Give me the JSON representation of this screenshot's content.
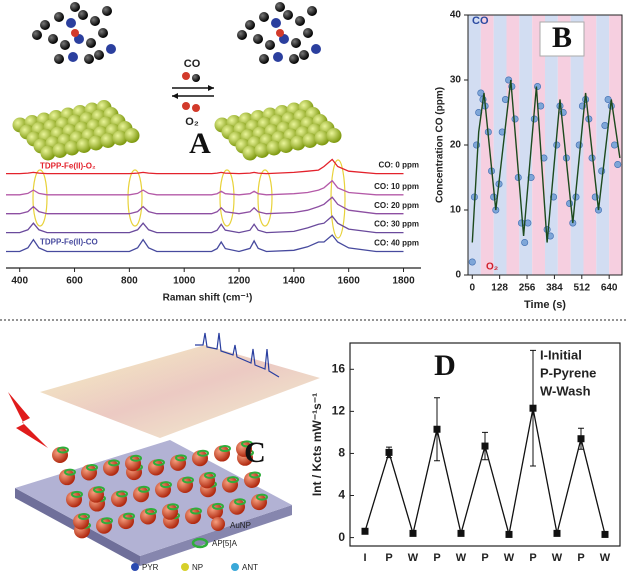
{
  "chart_data": [
    {
      "type": "line",
      "panel": "A",
      "xlabel": "Raman shift (cm⁻¹)",
      "annotations": [
        "TDPP-Fe(II)-O₂",
        "TDPP-Fe(II)-CO"
      ],
      "scheme_labels": [
        "CO",
        "O₂"
      ],
      "xlim": [
        350,
        1820
      ],
      "xticks": [
        400,
        600,
        800,
        1000,
        1200,
        1400,
        1600,
        1800
      ],
      "ylim": [
        0,
        5
      ],
      "x": [
        350,
        400,
        430,
        450,
        470,
        500,
        600,
        700,
        800,
        830,
        850,
        870,
        900,
        1000,
        1100,
        1120,
        1135,
        1150,
        1200,
        1240,
        1255,
        1270,
        1300,
        1400,
        1450,
        1490,
        1510,
        1540,
        1560,
        1600,
        1700,
        1800
      ],
      "series": [
        {
          "name": "CO: 0 ppm",
          "color": "#e3222c",
          "values": [
            4.0,
            4.0,
            4.02,
            4.05,
            4.02,
            4.0,
            4.0,
            4.0,
            4.0,
            4.02,
            4.05,
            4.02,
            4.0,
            4.0,
            4.0,
            4.02,
            4.05,
            4.02,
            4.0,
            4.02,
            4.05,
            4.02,
            4.0,
            4.05,
            4.1,
            4.15,
            4.3,
            4.6,
            4.3,
            4.1,
            4.0,
            4.0
          ]
        },
        {
          "name": "CO: 10 ppm",
          "color": "#b45aa8",
          "values": [
            3.1,
            3.1,
            3.16,
            3.3,
            3.16,
            3.1,
            3.1,
            3.1,
            3.1,
            3.16,
            3.3,
            3.16,
            3.1,
            3.1,
            3.1,
            3.15,
            3.25,
            3.15,
            3.1,
            3.15,
            3.25,
            3.15,
            3.1,
            3.15,
            3.2,
            3.3,
            3.4,
            3.7,
            3.4,
            3.2,
            3.1,
            3.1
          ]
        },
        {
          "name": "CO: 20 ppm",
          "color": "#8d4fa2",
          "values": [
            2.3,
            2.3,
            2.39,
            2.6,
            2.39,
            2.3,
            2.3,
            2.3,
            2.3,
            2.39,
            2.6,
            2.39,
            2.3,
            2.3,
            2.3,
            2.38,
            2.55,
            2.38,
            2.3,
            2.38,
            2.55,
            2.38,
            2.3,
            2.35,
            2.45,
            2.6,
            2.7,
            3.0,
            2.7,
            2.45,
            2.3,
            2.3
          ]
        },
        {
          "name": "CO: 30 ppm",
          "color": "#6a4a9c",
          "values": [
            1.5,
            1.5,
            1.62,
            1.9,
            1.62,
            1.5,
            1.5,
            1.5,
            1.5,
            1.62,
            1.9,
            1.62,
            1.5,
            1.5,
            1.5,
            1.6,
            1.85,
            1.6,
            1.5,
            1.6,
            1.85,
            1.6,
            1.5,
            1.55,
            1.7,
            1.85,
            1.9,
            2.2,
            1.9,
            1.65,
            1.5,
            1.5
          ]
        },
        {
          "name": "CO: 40 ppm",
          "color": "#474a9e",
          "values": [
            0.7,
            0.7,
            0.85,
            1.2,
            0.85,
            0.7,
            0.7,
            0.7,
            0.7,
            0.85,
            1.2,
            0.85,
            0.7,
            0.7,
            0.7,
            0.82,
            1.1,
            0.82,
            0.7,
            0.83,
            1.15,
            0.83,
            0.7,
            0.75,
            0.9,
            1.1,
            1.1,
            1.4,
            1.1,
            0.85,
            0.7,
            0.7
          ]
        }
      ]
    },
    {
      "type": "scatter",
      "panel": "B",
      "xlabel": "Time (s)",
      "ylabel": "Concentration CO (ppm)",
      "annotations": [
        "CO",
        "O₂"
      ],
      "color": "#7ea6d8",
      "xlim": [
        -20,
        700
      ],
      "xticks": [
        0,
        128,
        256,
        384,
        512,
        640
      ],
      "ylim": [
        0,
        40
      ],
      "yticks": [
        0,
        10,
        20,
        30,
        40
      ],
      "x": [
        0,
        10,
        20,
        30,
        40,
        50,
        60,
        75,
        90,
        100,
        110,
        125,
        140,
        155,
        170,
        185,
        200,
        215,
        230,
        245,
        260,
        275,
        290,
        305,
        320,
        335,
        350,
        365,
        380,
        395,
        410,
        425,
        440,
        455,
        470,
        485,
        500,
        515,
        530,
        545,
        560,
        575,
        590,
        605,
        620,
        635,
        650,
        665,
        680
      ],
      "values": [
        2,
        12,
        20,
        25,
        28,
        27,
        26,
        22,
        16,
        12,
        10,
        14,
        22,
        27,
        30,
        29,
        24,
        15,
        8,
        5,
        8,
        15,
        24,
        29,
        26,
        18,
        7,
        6,
        12,
        20,
        26,
        25,
        18,
        11,
        8,
        12,
        20,
        26,
        27,
        24,
        18,
        12,
        10,
        16,
        23,
        27,
        26,
        20,
        17
      ],
      "fit": {
        "color": "#1d4a1d",
        "x": [
          0,
          30,
          55,
          110,
          180,
          240,
          300,
          350,
          410,
          470,
          530,
          590,
          650,
          690
        ],
        "values": [
          5,
          22,
          28,
          10,
          30,
          6,
          29,
          5,
          27,
          8,
          28,
          10,
          27,
          18
        ]
      }
    },
    {
      "type": "line",
      "panel": "D",
      "ylabel": "Int / Kcts mW⁻¹s⁻¹",
      "legend": [
        "I-Initial",
        "P-Pyrene",
        "W-Wash"
      ],
      "color": "#111111",
      "ylim": [
        -0.8,
        18.5
      ],
      "yticks": [
        0,
        4,
        8,
        12,
        16
      ],
      "categories": [
        "I",
        "P",
        "W",
        "P",
        "W",
        "P",
        "W",
        "P",
        "W",
        "P",
        "W"
      ],
      "values": [
        0.6,
        8.1,
        0.4,
        10.3,
        0.4,
        8.7,
        0.3,
        12.3,
        0.4,
        9.4,
        0.3
      ],
      "errors": [
        0.05,
        0.5,
        0.1,
        3.0,
        0.1,
        1.3,
        0.1,
        5.5,
        0.1,
        1.0,
        0.1
      ]
    }
  ],
  "panel_c": {
    "label": "C",
    "legend": [
      "AuNP",
      "AP[5]A",
      "PYR",
      "NP",
      "ANT"
    ]
  }
}
